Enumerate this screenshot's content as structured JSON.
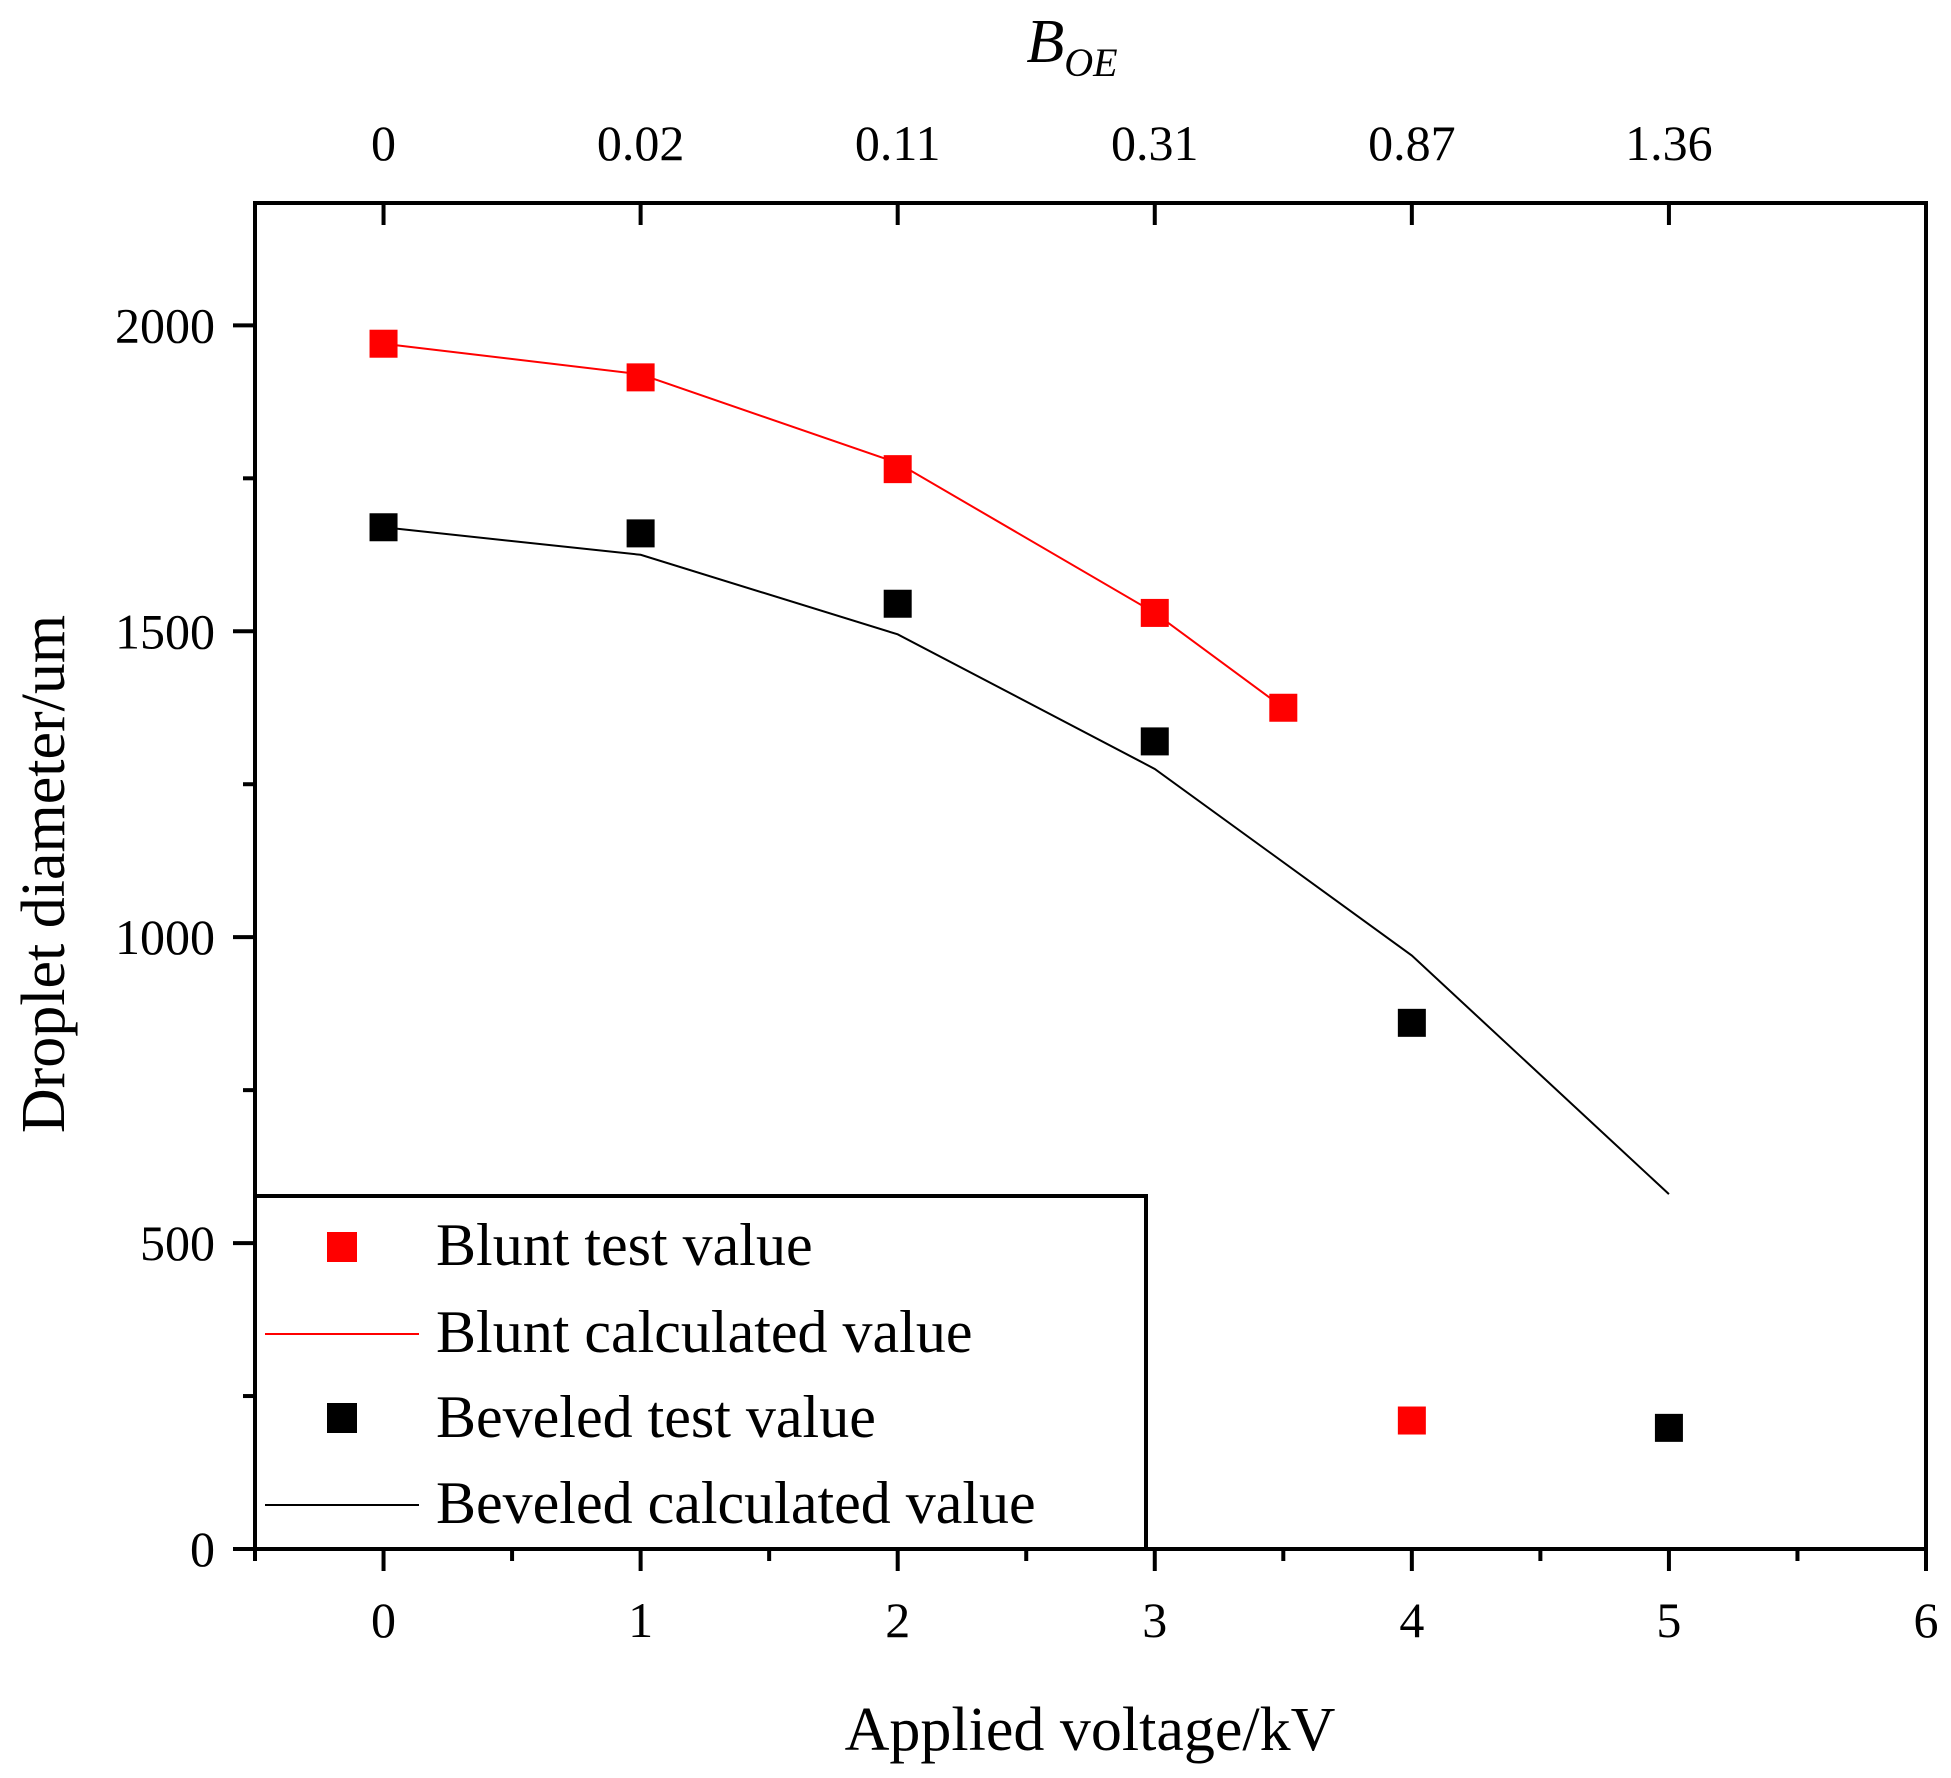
{
  "chart_data": {
    "type": "scatter",
    "title": "",
    "xlabel": "Applied voltage/kV",
    "ylabel": "Droplet diameter/um",
    "top_axis_label": {
      "main": "B",
      "subscript": "OE"
    },
    "xlim": [
      -0.5,
      6
    ],
    "ylim": [
      0,
      2200
    ],
    "x_ticks": [
      0,
      1,
      2,
      3,
      4,
      5,
      6
    ],
    "x_tick_labels": [
      "0",
      "1",
      "2",
      "3",
      "4",
      "5",
      "6"
    ],
    "y_ticks": [
      0,
      500,
      1000,
      1500,
      2000
    ],
    "y_tick_labels": [
      "0",
      "500",
      "1000",
      "1500",
      "2000"
    ],
    "top_ticks": [
      0,
      1,
      2,
      3,
      4,
      5
    ],
    "top_tick_labels": [
      "0",
      "0.02",
      "0.11",
      "0.31",
      "0.87",
      "1.36"
    ],
    "series": [
      {
        "name": "Blunt test value",
        "kind": "scatter",
        "color": "#ff0000",
        "x": [
          0,
          1,
          2,
          3,
          3.5,
          4
        ],
        "y": [
          1970,
          1915,
          1765,
          1530,
          1375,
          210
        ]
      },
      {
        "name": "Blunt calculated value",
        "kind": "line",
        "color": "#ff0000",
        "x": [
          0,
          1,
          2,
          3,
          3.5
        ],
        "y": [
          1970,
          1920,
          1775,
          1530,
          1375
        ]
      },
      {
        "name": "Beveled test value",
        "kind": "scatter",
        "color": "#000000",
        "x": [
          0,
          1,
          2,
          3,
          4,
          5
        ],
        "y": [
          1670,
          1660,
          1545,
          1320,
          860,
          198
        ]
      },
      {
        "name": "Beveled calculated value",
        "kind": "line",
        "color": "#000000",
        "x": [
          0,
          1,
          2,
          3,
          4,
          5
        ],
        "y": [
          1670,
          1625,
          1495,
          1275,
          970,
          580
        ]
      }
    ],
    "legend_position": "bottom-left"
  }
}
